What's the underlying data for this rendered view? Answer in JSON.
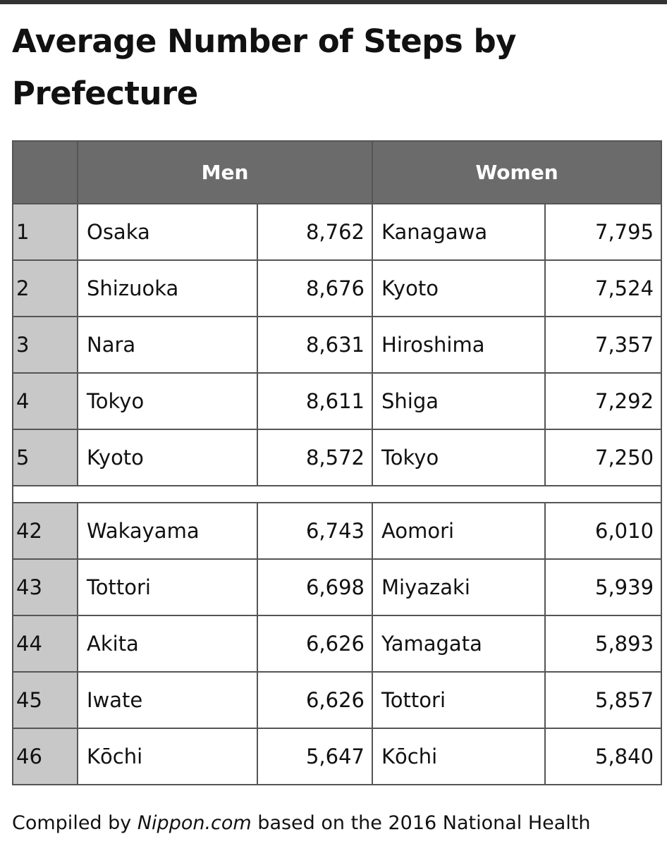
{
  "title": "Average Number of Steps by Prefecture",
  "table": {
    "header": {
      "men": "Men",
      "women": "Women"
    },
    "top_rows": [
      [
        "1",
        "Osaka",
        "8,762",
        "Kanagawa",
        "7,795"
      ],
      [
        "2",
        "Shizuoka",
        "8,676",
        "Kyoto",
        "7,524"
      ],
      [
        "3",
        "Nara",
        "8,631",
        "Hiroshima",
        "7,357"
      ],
      [
        "4",
        "Tokyo",
        "8,611",
        "Shiga",
        "7,292"
      ],
      [
        "5",
        "Kyoto",
        "8,572",
        "Tokyo",
        "7,250"
      ]
    ],
    "bottom_rows": [
      [
        "42",
        "Wakayama",
        "6,743",
        "Aomori",
        "6,010"
      ],
      [
        "43",
        "Tottori",
        "6,698",
        "Miyazaki",
        "5,939"
      ],
      [
        "44",
        "Akita",
        "6,626",
        "Yamagata",
        "5,893"
      ],
      [
        "45",
        "Iwate",
        "6,626",
        "Tottori",
        "5,857"
      ],
      [
        "46",
        "Kōchi",
        "5,647",
        "Kōchi",
        "5,840"
      ]
    ]
  },
  "footer": {
    "prefix": "Compiled by ",
    "source": "Nippon.com",
    "suffix": " based on the 2016 National Health"
  }
}
